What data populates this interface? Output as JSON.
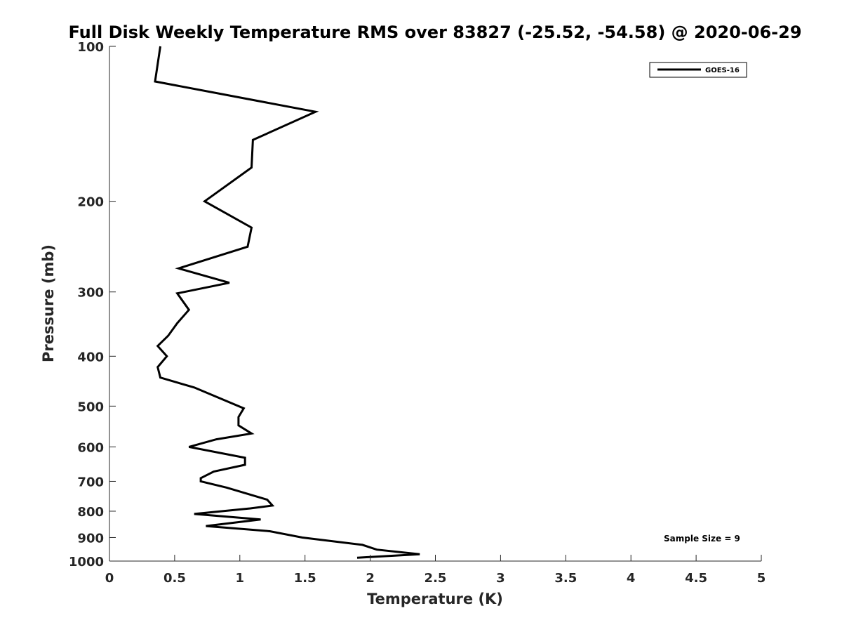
{
  "chart_data": {
    "type": "line",
    "title": "Full Disk Weekly Temperature RMS over 83827 (-25.52, -54.58) @ 2020-06-29",
    "xlabel": "Temperature (K)",
    "ylabel": "Pressure (mb)",
    "xlim": [
      0,
      5
    ],
    "ylim": [
      100,
      1000
    ],
    "y_scale": "log",
    "y_reversed": true,
    "grid": false,
    "legend_position": "top-right",
    "x_ticks": [
      "0",
      "0.5",
      "1",
      "1.5",
      "2",
      "2.5",
      "3",
      "3.5",
      "4",
      "4.5",
      "5"
    ],
    "y_ticks": [
      "100",
      "200",
      "300",
      "400",
      "500",
      "600",
      "700",
      "800",
      "900",
      "1000"
    ],
    "series": [
      {
        "name": "GOES-16",
        "color": "#000000",
        "x": [
          0.39,
          0.35,
          1.58,
          1.1,
          1.09,
          0.73,
          1.09,
          1.06,
          0.53,
          0.92,
          0.52,
          0.61,
          0.52,
          0.45,
          0.37,
          0.44,
          0.37,
          0.39,
          0.65,
          1.03,
          0.99,
          0.99,
          1.09,
          0.82,
          0.61,
          1.04,
          1.04,
          0.8,
          0.7,
          0.7,
          0.9,
          1.21,
          1.25,
          1.08,
          0.65,
          1.16,
          0.74,
          1.23,
          1.48,
          1.94,
          2.05,
          2.38,
          1.9
        ],
        "y": [
          100,
          117,
          134,
          152,
          172,
          200,
          225,
          245,
          270,
          288,
          302,
          325,
          345,
          365,
          382,
          400,
          420,
          440,
          460,
          505,
          525,
          545,
          565,
          580,
          600,
          630,
          650,
          670,
          690,
          700,
          720,
          760,
          780,
          790,
          810,
          830,
          855,
          875,
          900,
          930,
          950,
          970,
          985
        ]
      }
    ],
    "annotations": [
      "Sample Size = 9"
    ]
  }
}
